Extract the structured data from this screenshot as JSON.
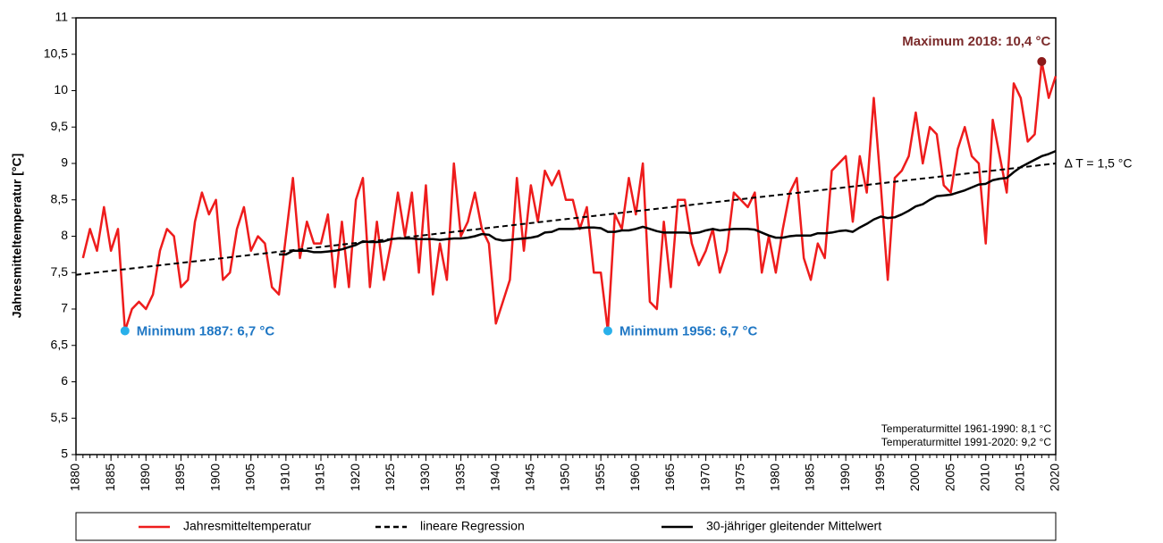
{
  "chart_data": {
    "type": "line",
    "y_label": "Jahresmitteltemperatur [°C]",
    "xlim": [
      1880,
      2020
    ],
    "xticks": [
      1880,
      1885,
      1890,
      1895,
      1900,
      1905,
      1910,
      1915,
      1920,
      1925,
      1930,
      1935,
      1940,
      1945,
      1950,
      1955,
      1960,
      1965,
      1970,
      1975,
      1980,
      1985,
      1990,
      1995,
      2000,
      2005,
      2010,
      2015,
      2020
    ],
    "ylim": [
      5,
      11
    ],
    "yticks": [
      5,
      {
        "value": 5.5,
        "label": "5,5"
      },
      6,
      {
        "value": 6.5,
        "label": "6,5"
      },
      7,
      {
        "value": 7.5,
        "label": "7,5"
      },
      8,
      {
        "value": 8.5,
        "label": "8,5"
      },
      9,
      {
        "value": 9.5,
        "label": "9,5"
      },
      10,
      {
        "value": 10.5,
        "label": "10,5"
      },
      11
    ],
    "x": [
      1881,
      1882,
      1883,
      1884,
      1885,
      1886,
      1887,
      1888,
      1889,
      1890,
      1891,
      1892,
      1893,
      1894,
      1895,
      1896,
      1897,
      1898,
      1899,
      1900,
      1901,
      1902,
      1903,
      1904,
      1905,
      1906,
      1907,
      1908,
      1909,
      1910,
      1911,
      1912,
      1913,
      1914,
      1915,
      1916,
      1917,
      1918,
      1919,
      1920,
      1921,
      1922,
      1923,
      1924,
      1925,
      1926,
      1927,
      1928,
      1929,
      1930,
      1931,
      1932,
      1933,
      1934,
      1935,
      1936,
      1937,
      1938,
      1939,
      1940,
      1941,
      1942,
      1943,
      1944,
      1945,
      1946,
      1947,
      1948,
      1949,
      1950,
      1951,
      1952,
      1953,
      1954,
      1955,
      1956,
      1957,
      1958,
      1959,
      1960,
      1961,
      1962,
      1963,
      1964,
      1965,
      1966,
      1967,
      1968,
      1969,
      1970,
      1971,
      1972,
      1973,
      1974,
      1975,
      1976,
      1977,
      1978,
      1979,
      1980,
      1981,
      1982,
      1983,
      1984,
      1985,
      1986,
      1987,
      1988,
      1989,
      1990,
      1991,
      1992,
      1993,
      1994,
      1995,
      1996,
      1997,
      1998,
      1999,
      2000,
      2001,
      2002,
      2003,
      2004,
      2005,
      2006,
      2007,
      2008,
      2009,
      2010,
      2011,
      2012,
      2013,
      2014,
      2015,
      2016,
      2017,
      2018,
      2019,
      2020
    ],
    "series": [
      {
        "name": "Jahresmitteltemperatur",
        "color": "#ee1c1c",
        "style": "solid",
        "values": [
          7.7,
          8.1,
          7.8,
          8.4,
          7.8,
          8.1,
          6.7,
          7.0,
          7.1,
          7.0,
          7.2,
          7.8,
          8.1,
          8.0,
          7.3,
          7.4,
          8.2,
          8.6,
          8.3,
          8.5,
          7.4,
          7.5,
          8.1,
          8.4,
          7.8,
          8.0,
          7.9,
          7.3,
          7.2,
          8.0,
          8.8,
          7.7,
          8.2,
          7.9,
          7.9,
          8.3,
          7.3,
          8.2,
          7.3,
          8.5,
          8.8,
          7.3,
          8.2,
          7.4,
          7.9,
          8.6,
          8.0,
          8.6,
          7.5,
          8.7,
          7.2,
          7.9,
          7.4,
          9.0,
          8.0,
          8.2,
          8.6,
          8.1,
          7.9,
          6.8,
          7.1,
          7.4,
          8.8,
          7.8,
          8.7,
          8.2,
          8.9,
          8.7,
          8.9,
          8.5,
          8.5,
          8.1,
          8.4,
          7.5,
          7.5,
          6.7,
          8.3,
          8.1,
          8.8,
          8.3,
          9.0,
          7.1,
          7.0,
          8.2,
          7.3,
          8.5,
          8.5,
          7.9,
          7.6,
          7.8,
          8.1,
          7.5,
          7.8,
          8.6,
          8.5,
          8.4,
          8.6,
          7.5,
          8.0,
          7.5,
          8.1,
          8.6,
          8.8,
          7.7,
          7.4,
          7.9,
          7.7,
          8.9,
          9.0,
          9.1,
          8.2,
          9.1,
          8.6,
          9.9,
          8.7,
          7.4,
          8.8,
          8.9,
          9.1,
          9.7,
          9.0,
          9.5,
          9.4,
          8.7,
          8.6,
          9.2,
          9.5,
          9.1,
          9.0,
          7.9,
          9.6,
          9.1,
          8.6,
          10.1,
          9.9,
          9.3,
          9.4,
          10.4,
          9.9,
          10.2
        ]
      },
      {
        "name": "lineare Regression",
        "color": "#000000",
        "style": "dashed",
        "x": [
          1880,
          2020
        ],
        "values": [
          7.47,
          9.0
        ]
      },
      {
        "name": "30-jähriger gleitender Mittelwert",
        "color": "#000000",
        "style": "solid",
        "values": [
          null,
          null,
          null,
          null,
          null,
          null,
          null,
          null,
          null,
          null,
          null,
          null,
          null,
          null,
          null,
          null,
          null,
          null,
          null,
          null,
          null,
          null,
          null,
          null,
          null,
          null,
          null,
          null,
          7.75,
          7.75,
          7.8,
          7.8,
          7.8,
          7.78,
          7.78,
          7.79,
          7.8,
          7.82,
          7.85,
          7.88,
          7.93,
          7.92,
          7.92,
          7.93,
          7.96,
          7.97,
          7.97,
          7.97,
          7.96,
          7.96,
          7.96,
          7.95,
          7.96,
          7.97,
          7.97,
          7.98,
          8.0,
          8.03,
          8.02,
          7.96,
          7.94,
          7.95,
          7.96,
          7.97,
          7.98,
          8.0,
          8.05,
          8.06,
          8.1,
          8.1,
          8.1,
          8.11,
          8.12,
          8.12,
          8.11,
          8.06,
          8.06,
          8.08,
          8.08,
          8.1,
          8.13,
          8.1,
          8.07,
          8.05,
          8.05,
          8.05,
          8.05,
          8.04,
          8.05,
          8.08,
          8.1,
          8.08,
          8.09,
          8.1,
          8.1,
          8.1,
          8.09,
          8.05,
          8.01,
          7.98,
          7.98,
          8.0,
          8.01,
          8.01,
          8.01,
          8.04,
          8.04,
          8.05,
          8.07,
          8.08,
          8.06,
          8.12,
          8.17,
          8.23,
          8.27,
          8.25,
          8.26,
          8.3,
          8.35,
          8.41,
          8.44,
          8.5,
          8.55,
          8.56,
          8.57,
          8.6,
          8.63,
          8.67,
          8.71,
          8.72,
          8.77,
          8.79,
          8.8,
          8.88,
          8.95,
          9.0,
          9.05,
          9.1,
          9.13,
          9.17
        ]
      }
    ],
    "annotations": [
      {
        "text": "Maximum 2018: 10,4 °C",
        "x": 2018,
        "y": 10.4,
        "color": "#8b1a1a",
        "text_color": "#7b2b2b",
        "side": "above"
      },
      {
        "text": "Minimum 1887: 6,7 °C",
        "x": 1887,
        "y": 6.7,
        "color": "#29b0ea",
        "text_color": "#1f77c4",
        "side": "right"
      },
      {
        "text": "Minimum 1956: 6,7 °C",
        "x": 1956,
        "y": 6.7,
        "color": "#29b0ea",
        "text_color": "#1f77c4",
        "side": "right"
      }
    ],
    "delta_label": "∆ T = 1,5 °C",
    "notes": [
      "Temperaturmittel 1961-1990: 8,1 °C",
      "Temperaturmittel 1991-2020: 9,2 °C"
    ],
    "legend": "bottom"
  }
}
